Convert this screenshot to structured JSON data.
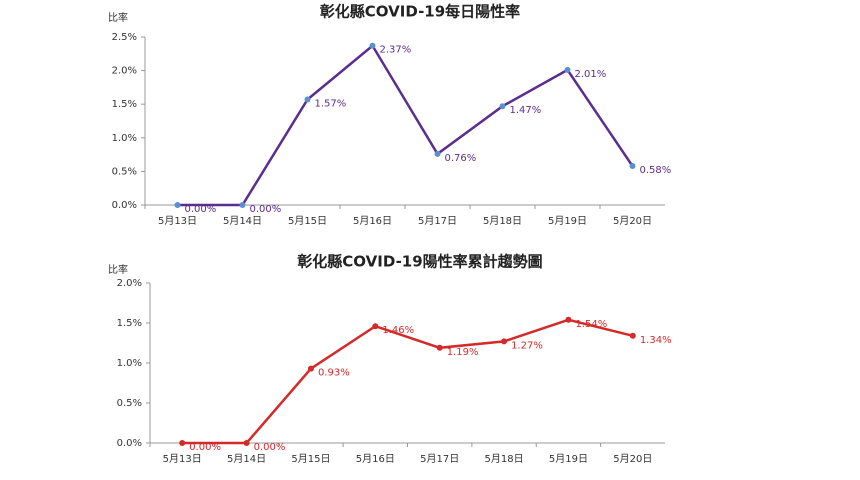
{
  "chart_data": [
    {
      "type": "line",
      "title": "彰化縣COVID-19每日陽性率",
      "y_label": "比率",
      "categories": [
        "5月13日",
        "5月14日",
        "5月15日",
        "5月16日",
        "5月17日",
        "5月18日",
        "5月19日",
        "5月20日"
      ],
      "values": [
        0,
        0,
        1.57,
        2.37,
        0.76,
        1.47,
        2.01,
        0.58
      ],
      "value_labels": [
        "0.00%",
        "0.00%",
        "1.57%",
        "2.37%",
        "0.76%",
        "1.47%",
        "2.01%",
        "0.58%"
      ],
      "color": "#5b2d8e",
      "marker_color": "#5b8fd0",
      "ylim": [
        0,
        2.5
      ],
      "yticks": [
        {
          "value": 0,
          "label": "0.0%"
        },
        {
          "value": 0.5,
          "label": "0.5%"
        },
        {
          "value": 1,
          "label": "1.0%"
        },
        {
          "value": 1.5,
          "label": "1.5%"
        },
        {
          "value": 2,
          "label": "2.0%"
        },
        {
          "value": 2.5,
          "label": "2.5%"
        }
      ]
    },
    {
      "type": "line",
      "title": "彰化縣COVID-19陽性率累計趨勢圖",
      "y_label": "比率",
      "categories": [
        "5月13日",
        "5月14日",
        "5月15日",
        "5月16日",
        "5月17日",
        "5月18日",
        "5月19日",
        "5月20日"
      ],
      "values": [
        0,
        0,
        0.93,
        1.46,
        1.19,
        1.27,
        1.54,
        1.34
      ],
      "value_labels": [
        "0.00%",
        "0.00%",
        "0.93%",
        "1.46%",
        "1.19%",
        "1.27%",
        "1.54%",
        "1.34%"
      ],
      "color": "#d42a2a",
      "marker_color": "#d42a2a",
      "ylim": [
        0,
        2
      ],
      "yticks": [
        {
          "value": 0,
          "label": "0.0%"
        },
        {
          "value": 0.5,
          "label": "0.5%"
        },
        {
          "value": 1,
          "label": "1.0%"
        },
        {
          "value": 1.5,
          "label": "1.5%"
        },
        {
          "value": 2,
          "label": "2.0%"
        }
      ]
    }
  ]
}
